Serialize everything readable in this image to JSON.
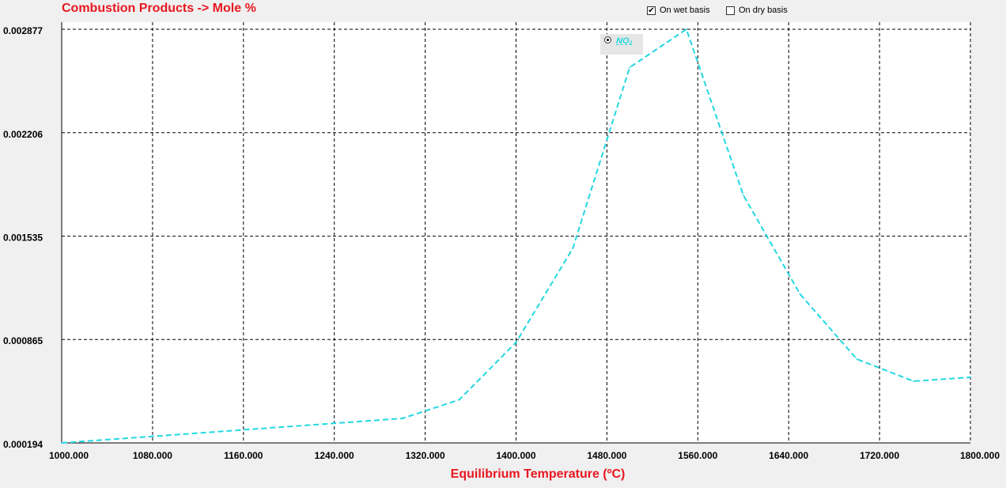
{
  "title": "Combustion Products -> Mole %",
  "options": {
    "wet_basis": {
      "label": "On wet basis",
      "checked": true
    },
    "dry_basis": {
      "label": "On dry basis",
      "checked": false
    }
  },
  "chart_data": {
    "type": "line",
    "xlabel": "Equilibrium Temperature (ºC)",
    "ylabel": "",
    "xlim": [
      1000,
      1800
    ],
    "ylim": [
      0.000194,
      0.002877
    ],
    "x_ticks": [
      "1000.000",
      "1080.000",
      "1160.000",
      "1240.000",
      "1320.000",
      "1400.000",
      "1480.000",
      "1560.000",
      "1640.000",
      "1720.000",
      "1800.000"
    ],
    "y_ticks": [
      "0.002877",
      "0.002206",
      "0.001535",
      "0.000865",
      "0.000194"
    ],
    "grid": true,
    "legend_position": "top-center",
    "series": [
      {
        "name": "NO₂",
        "color": "#21d8e0",
        "x": [
          1000,
          1300,
          1350,
          1400,
          1450,
          1500,
          1550,
          1600,
          1650,
          1700,
          1750,
          1800
        ],
        "y": [
          0.000194,
          0.000353,
          0.000474,
          0.000846,
          0.001456,
          0.002629,
          0.002877,
          0.001802,
          0.001159,
          0.000738,
          0.000594,
          0.00062
        ]
      }
    ]
  }
}
